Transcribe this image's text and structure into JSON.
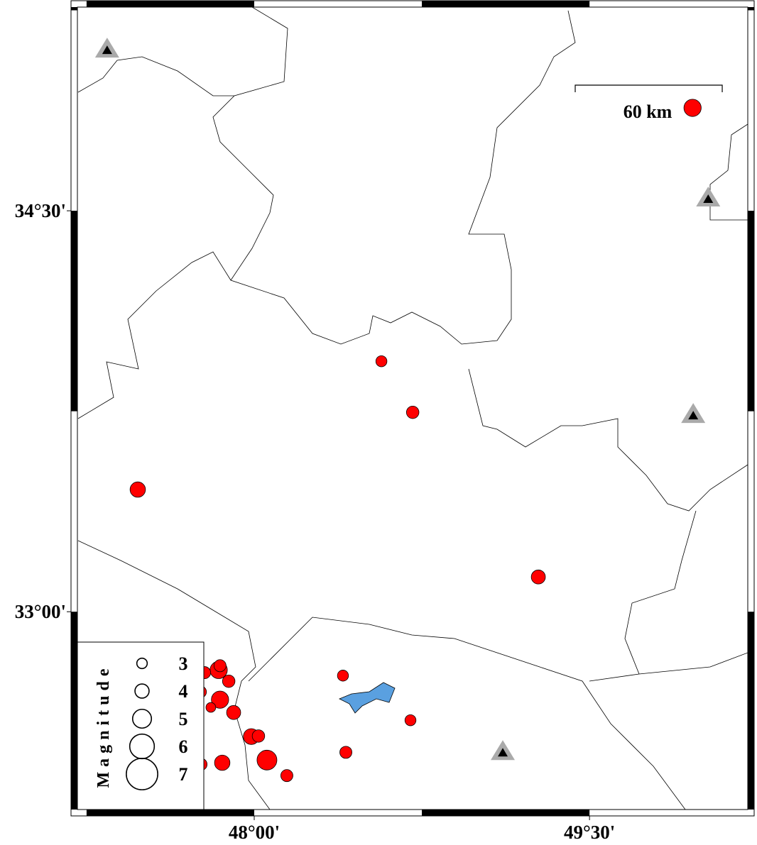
{
  "map": {
    "xlim": [
      47.209,
      50.208
    ],
    "ylim": [
      32.26,
      35.262
    ],
    "xticks": [
      {
        "value": 48,
        "label": "48°00'"
      },
      {
        "value": 49.5,
        "label": "49°30'"
      }
    ],
    "yticks": [
      {
        "value": 33,
        "label": "33°00'"
      },
      {
        "value": 34.5,
        "label": "34°30'"
      }
    ],
    "event_color": "#ff0000",
    "events": [
      {
        "lon": 49.961,
        "lat": 34.885,
        "mag": 4.7
      },
      {
        "lon": 48.569,
        "lat": 33.937,
        "mag": 3.2
      },
      {
        "lon": 48.709,
        "lat": 33.746,
        "mag": 3.6
      },
      {
        "lon": 47.479,
        "lat": 33.457,
        "mag": 4.3
      },
      {
        "lon": 49.271,
        "lat": 33.13,
        "mag": 4.0
      },
      {
        "lon": 48.397,
        "lat": 32.761,
        "mag": 3.2
      },
      {
        "lon": 48.699,
        "lat": 32.594,
        "mag": 3.2
      },
      {
        "lon": 48.41,
        "lat": 32.474,
        "mag": 3.5
      },
      {
        "lon": 48.146,
        "lat": 32.387,
        "mag": 3.5
      },
      {
        "lon": 48.057,
        "lat": 32.445,
        "mag": 5.2
      },
      {
        "lon": 47.987,
        "lat": 32.533,
        "mag": 4.4
      },
      {
        "lon": 48.019,
        "lat": 32.535,
        "mag": 3.6
      },
      {
        "lon": 47.908,
        "lat": 32.623,
        "mag": 4.0
      },
      {
        "lon": 47.857,
        "lat": 32.435,
        "mag": 4.3
      },
      {
        "lon": 47.847,
        "lat": 32.671,
        "mag": 4.7
      },
      {
        "lon": 47.886,
        "lat": 32.74,
        "mag": 3.6
      },
      {
        "lon": 47.841,
        "lat": 32.782,
        "mag": 4.7
      },
      {
        "lon": 47.847,
        "lat": 32.798,
        "mag": 3.5
      },
      {
        "lon": 47.778,
        "lat": 32.772,
        "mag": 3.5
      },
      {
        "lon": 47.806,
        "lat": 32.642,
        "mag": 2.8
      },
      {
        "lon": 47.762,
        "lat": 32.429,
        "mag": 3.5
      },
      {
        "lon": 47.759,
        "lat": 32.7,
        "mag": 3.5
      }
    ],
    "stations": [
      {
        "lon": 47.342,
        "lat": 35.105
      },
      {
        "lon": 50.031,
        "lat": 34.548
      },
      {
        "lon": 49.964,
        "lat": 33.738
      },
      {
        "lon": 49.112,
        "lat": 32.477
      }
    ],
    "scale_bar": {
      "label": "60 km",
      "length_km": 60
    },
    "legend": {
      "title": "Magnitude",
      "magnitudes": [
        3,
        4,
        5,
        6,
        7
      ]
    }
  }
}
